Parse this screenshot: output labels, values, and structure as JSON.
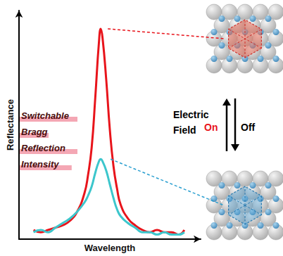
{
  "chart_data": {
    "type": "line",
    "x_label": "Wavelength",
    "y_label": "Reflectance",
    "xlim": [
      0,
      100
    ],
    "ylim": [
      0,
      100
    ],
    "tick_labels": false,
    "grid": false,
    "x": [
      8,
      12,
      16,
      20,
      24,
      28,
      32,
      36,
      38,
      40,
      42,
      44,
      45,
      46,
      48,
      50,
      52,
      54,
      56,
      60,
      64,
      68,
      72,
      76,
      80,
      84,
      88,
      91
    ],
    "series": [
      {
        "color": "#e8141b",
        "values": [
          4,
          3,
          4,
          5,
          6,
          8,
          12,
          20,
          28,
          40,
          62,
          86,
          92,
          88,
          70,
          48,
          32,
          22,
          15,
          9,
          6,
          4,
          3,
          4,
          3,
          3,
          2,
          4
        ]
      },
      {
        "color": "#3cc6cc",
        "values": [
          3,
          4,
          3,
          5,
          7,
          9,
          12,
          16,
          19,
          23,
          29,
          34,
          35,
          34,
          30,
          24,
          18,
          13,
          10,
          7,
          5,
          3,
          3,
          2,
          3,
          2,
          2,
          3
        ]
      }
    ],
    "annotations": [
      "Switchable Bragg Reflection Intensity",
      "Electric Field",
      "On",
      "Off"
    ]
  }
}
